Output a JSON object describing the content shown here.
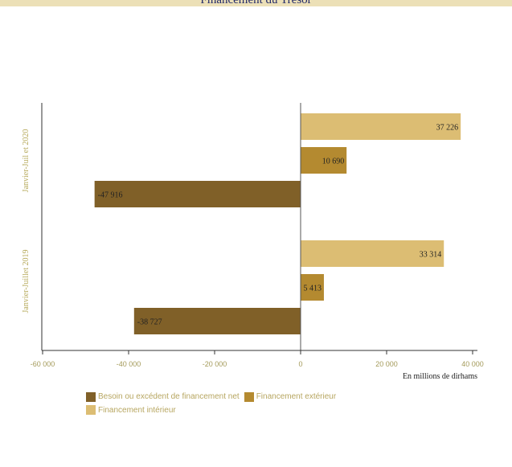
{
  "header": {
    "title": "Financement du Trésor"
  },
  "chart_data": {
    "type": "bar",
    "orientation": "horizontal",
    "title": "Financement du Trésor",
    "xlabel": "En millions de dirhams",
    "xlim": [
      -60000,
      40000
    ],
    "x_ticks": [
      -60000,
      -40000,
      -20000,
      0,
      20000,
      40000
    ],
    "x_tick_labels": [
      "-60 000",
      "-40 000",
      "-20 000",
      "0",
      "20 000",
      "40 000"
    ],
    "categories": [
      "Janvier-Juil et 2020",
      "Janvier-Juillet 2019"
    ],
    "legend_position": "bottom",
    "grid": false,
    "series": [
      {
        "name": "Besoin ou excédent de financement net",
        "color": "#806028",
        "values": [
          -47916,
          -38727
        ],
        "labels": [
          "-47 916",
          "-38 727"
        ]
      },
      {
        "name": "Financement extérieur",
        "color": "#b48a30",
        "values": [
          10690,
          5413
        ],
        "labels": [
          "10 690",
          "5 413"
        ]
      },
      {
        "name": "Financement intérieur",
        "color": "#dcbd73",
        "values": [
          37226,
          33314
        ],
        "labels": [
          "37 226",
          "33 314"
        ]
      }
    ]
  }
}
